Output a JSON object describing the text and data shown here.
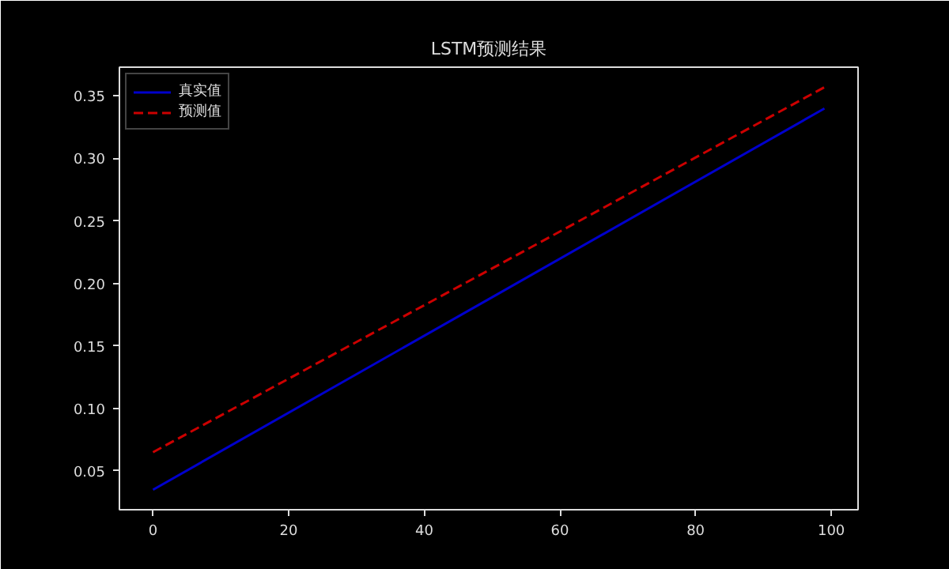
{
  "chart_data": {
    "type": "line",
    "title": "LSTM预测结果",
    "x": [
      0,
      50,
      99
    ],
    "series": [
      {
        "name": "真实值",
        "color": "#0000cc",
        "values": [
          0.035,
          0.189,
          0.34
        ],
        "line_style": "solid"
      },
      {
        "name": "预测值",
        "color": "#cc0000",
        "values": [
          0.065,
          0.212,
          0.357
        ],
        "line_style": "dashed"
      }
    ],
    "xlim": [
      -4.95,
      103.95
    ],
    "xticks": [
      0,
      20,
      40,
      60,
      80,
      100
    ],
    "ylim": [
      0.019,
      0.373
    ],
    "yticks": [
      {
        "value": 0.05,
        "label": "0.05"
      },
      {
        "value": 0.1,
        "label": "0.10"
      },
      {
        "value": 0.15,
        "label": "0.15"
      },
      {
        "value": 0.2,
        "label": "0.20"
      },
      {
        "value": 0.25,
        "label": "0.25"
      },
      {
        "value": 0.3,
        "label": "0.30"
      },
      {
        "value": 0.35,
        "label": "0.35"
      }
    ],
    "grid": false,
    "legend": "top left",
    "marker": "none"
  }
}
